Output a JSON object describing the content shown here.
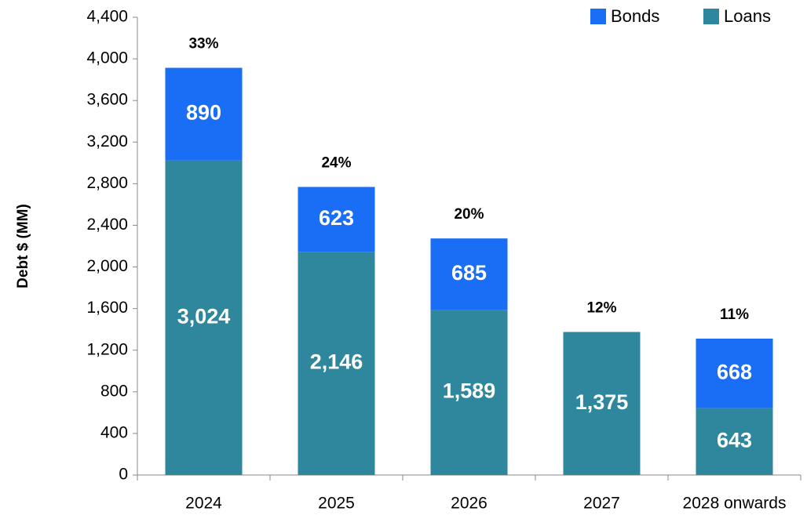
{
  "chart_data": {
    "type": "stacked_bar",
    "y_label": "Debt $ (MM)",
    "categories": [
      "2024",
      "2025",
      "2026",
      "2027",
      "2028 onwards"
    ],
    "series": [
      {
        "name": "Loans",
        "color": "#2e879c",
        "values": [
          3024,
          2146,
          1589,
          1375,
          643
        ],
        "value_labels": [
          "3,024",
          "2,146",
          "1,589",
          "1,375",
          "643"
        ]
      },
      {
        "name": "Bonds",
        "color": "#1a6ef5",
        "values": [
          890,
          623,
          685,
          null,
          668
        ],
        "value_labels": [
          "890",
          "623",
          "685",
          null,
          "668"
        ]
      }
    ],
    "annotations": [
      "33%",
      "24%",
      "20%",
      "12%",
      "11%"
    ],
    "ylim": [
      0,
      4400
    ],
    "yticks": [
      0,
      400,
      800,
      {
        "value": 1200,
        "label": "1,200"
      },
      {
        "value": 1600,
        "label": "1,600"
      },
      {
        "value": 2000,
        "label": "2,000"
      },
      {
        "value": 2400,
        "label": "2,400"
      },
      {
        "value": 2800,
        "label": "2,800"
      },
      {
        "value": 3200,
        "label": "3,200"
      },
      {
        "value": 3600,
        "label": "3,600"
      },
      {
        "value": 4000,
        "label": "4,000"
      },
      {
        "value": 4400,
        "label": "4,400"
      }
    ],
    "legend": "top-right"
  }
}
